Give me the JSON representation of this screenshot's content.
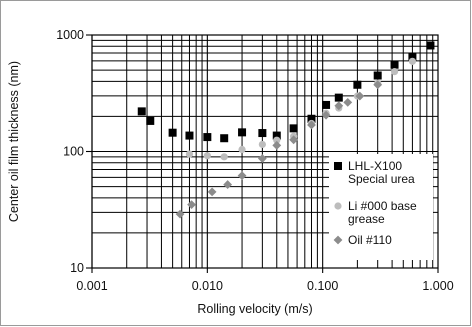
{
  "chart_data": {
    "type": "scatter",
    "title": "",
    "xlabel": "Rolling velocity (m/s)",
    "ylabel": "Center oil film thickness (nm)",
    "x_scale": "log",
    "y_scale": "log",
    "xlim": [
      0.001,
      1.0
    ],
    "ylim": [
      10,
      1000
    ],
    "x_ticks": [
      "0.001",
      "0.010",
      "0.100",
      "1.000"
    ],
    "y_ticks": [
      "10",
      "100",
      "1000"
    ],
    "grid": true,
    "legend_position": "right",
    "series": [
      {
        "name": "LHL-X100 Special urea",
        "legend_lines": [
          "LHL-X100",
          "Special urea"
        ],
        "marker": "square",
        "color": "#000000",
        "points": [
          [
            0.0027,
            221
          ],
          [
            0.0032,
            183
          ],
          [
            0.005,
            145
          ],
          [
            0.007,
            137
          ],
          [
            0.01,
            133
          ],
          [
            0.014,
            130
          ],
          [
            0.02,
            146
          ],
          [
            0.03,
            144
          ],
          [
            0.04,
            137
          ],
          [
            0.056,
            158
          ],
          [
            0.08,
            191
          ],
          [
            0.107,
            251
          ],
          [
            0.138,
            290
          ],
          [
            0.2,
            374
          ],
          [
            0.3,
            449
          ],
          [
            0.42,
            556
          ],
          [
            0.6,
            654
          ],
          [
            0.86,
            813
          ]
        ]
      },
      {
        "name": "Li #000 base grease",
        "legend_lines": [
          "Li #000 base",
          "grease"
        ],
        "marker": "circle",
        "color": "#bdbdbd",
        "points": [
          [
            0.007,
            95
          ],
          [
            0.01,
            92
          ],
          [
            0.014,
            90
          ],
          [
            0.02,
            104
          ],
          [
            0.03,
            115
          ],
          [
            0.04,
            125
          ],
          [
            0.056,
            135
          ],
          [
            0.08,
            174
          ],
          [
            0.107,
            213
          ],
          [
            0.138,
            236
          ],
          [
            0.2,
            299
          ],
          [
            0.3,
            386
          ],
          [
            0.42,
            485
          ],
          [
            0.6,
            594
          ]
        ]
      },
      {
        "name": "Oil #110",
        "legend_lines": [
          "Oil #110"
        ],
        "marker": "diamond",
        "color": "#8c8c8c",
        "points": [
          [
            0.0058,
            29
          ],
          [
            0.0073,
            35
          ],
          [
            0.011,
            45
          ],
          [
            0.015,
            52
          ],
          [
            0.02,
            62
          ],
          [
            0.03,
            87
          ],
          [
            0.04,
            113
          ],
          [
            0.056,
            126
          ],
          [
            0.08,
            169
          ],
          [
            0.107,
            205
          ],
          [
            0.138,
            247
          ],
          [
            0.165,
            264
          ],
          [
            0.21,
            299
          ],
          [
            0.3,
            374
          ]
        ]
      }
    ]
  }
}
